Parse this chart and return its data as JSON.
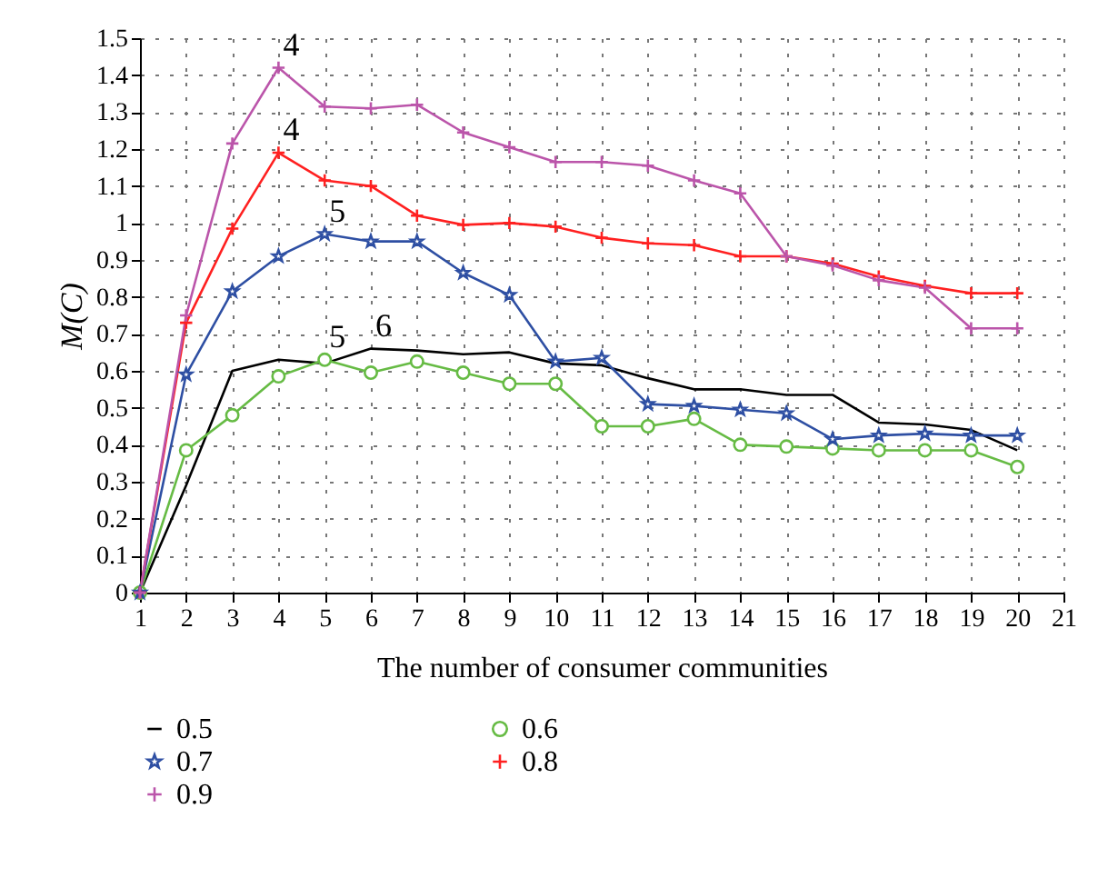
{
  "chart_data": {
    "type": "line",
    "xlabel": "The number of consumer communities",
    "ylabel": "M(C)",
    "x": [
      1,
      2,
      3,
      4,
      5,
      6,
      7,
      8,
      9,
      10,
      11,
      12,
      13,
      14,
      15,
      16,
      17,
      18,
      19,
      20
    ],
    "xlim": [
      1,
      21
    ],
    "xticks": [
      1,
      2,
      3,
      4,
      5,
      6,
      7,
      8,
      9,
      10,
      11,
      12,
      13,
      14,
      15,
      16,
      17,
      18,
      19,
      20,
      21
    ],
    "ylim": [
      0,
      1.5
    ],
    "yticks": [
      0,
      0.1,
      0.2,
      0.3,
      0.4,
      0.5,
      0.6,
      0.7,
      0.8,
      0.9,
      1,
      1.1,
      1.2,
      1.3,
      1.4,
      1.5
    ],
    "grid": true,
    "legend": "bottom",
    "line_style": "solid",
    "series": [
      {
        "name": "0.5",
        "color": "#000000",
        "marker": "none",
        "values": [
          0,
          0.29,
          0.6,
          0.63,
          0.62,
          0.66,
          0.655,
          0.645,
          0.65,
          0.62,
          0.615,
          0.58,
          0.55,
          0.55,
          0.535,
          0.535,
          0.46,
          0.455,
          0.44,
          0.385
        ]
      },
      {
        "name": "0.6",
        "color": "#66bb44",
        "marker": "circle",
        "values": [
          0,
          0.385,
          0.48,
          0.585,
          0.63,
          0.595,
          0.625,
          0.595,
          0.565,
          0.565,
          0.45,
          0.45,
          0.47,
          0.4,
          0.395,
          0.39,
          0.385,
          0.385,
          0.385,
          0.34
        ]
      },
      {
        "name": "0.7",
        "color": "#2e4fa3",
        "marker": "star",
        "values": [
          0,
          0.59,
          0.815,
          0.91,
          0.97,
          0.95,
          0.95,
          0.865,
          0.805,
          0.625,
          0.635,
          0.51,
          0.505,
          0.495,
          0.485,
          0.415,
          0.425,
          0.43,
          0.425,
          0.425
        ]
      },
      {
        "name": "0.8",
        "color": "#ff2020",
        "marker": "cross",
        "values": [
          0,
          0.73,
          0.985,
          1.19,
          1.115,
          1.1,
          1.02,
          0.995,
          1,
          0.99,
          0.96,
          0.945,
          0.94,
          0.91,
          0.91,
          0.89,
          0.855,
          0.83,
          0.81,
          0.81
        ]
      },
      {
        "name": "0.9",
        "color": "#bb55aa",
        "marker": "cross",
        "values": [
          0,
          0.75,
          1.215,
          1.42,
          1.315,
          1.31,
          1.32,
          1.245,
          1.205,
          1.165,
          1.165,
          1.155,
          1.115,
          1.08,
          0.91,
          0.885,
          0.845,
          0.825,
          0.715,
          0.715
        ]
      }
    ],
    "annotations": [
      {
        "text": "4",
        "x": 4,
        "y": 1.42
      },
      {
        "text": "4",
        "x": 4,
        "y": 1.19
      },
      {
        "text": "5",
        "x": 5,
        "y": 0.97
      },
      {
        "text": "5",
        "x": 5,
        "y": 0.63
      },
      {
        "text": "6",
        "x": 6,
        "y": 0.66
      }
    ]
  }
}
